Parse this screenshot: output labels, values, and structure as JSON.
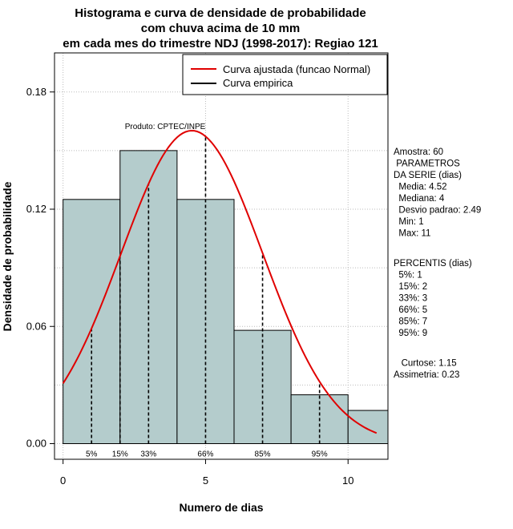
{
  "chart_data": {
    "type": "bar",
    "title_lines": [
      "Histograma e curva de densidade de probabilidade",
      "com chuva acima de 10 mm",
      "em cada mes do trimestre NDJ (1998-2017): Regiao 121"
    ],
    "xlabel": "Numero de dias",
    "ylabel": "Densidade de probabilidade",
    "xlim": [
      -0.3,
      11.4
    ],
    "ylim": [
      -0.008,
      0.2
    ],
    "x_ticks": [
      0,
      5,
      10
    ],
    "y_ticks": [
      0.0,
      0.06,
      0.12,
      0.18
    ],
    "y_tick_labels": [
      "0.00",
      "0.06",
      "0.12",
      "0.18"
    ],
    "grid": true,
    "bar_color": "#b4cccc",
    "bins": [
      {
        "x0": 0,
        "x1": 2,
        "density": 0.125
      },
      {
        "x0": 2,
        "x1": 4,
        "density": 0.15
      },
      {
        "x0": 4,
        "x1": 6,
        "density": 0.125
      },
      {
        "x0": 6,
        "x1": 8,
        "density": 0.058
      },
      {
        "x0": 8,
        "x1": 10,
        "density": 0.025
      },
      {
        "x0": 10,
        "x1": 11.4,
        "density": 0.017
      }
    ],
    "normal_fit": {
      "mean": 4.52,
      "sd": 2.49,
      "x_from": 0,
      "x_to": 11,
      "color": "#e00000"
    },
    "percentile_lines": [
      {
        "label": "5%",
        "x": 1
      },
      {
        "label": "15%",
        "x": 2
      },
      {
        "label": "33%",
        "x": 3
      },
      {
        "label": "66%",
        "x": 5
      },
      {
        "label": "85%",
        "x": 7
      },
      {
        "label": "95%",
        "x": 9
      }
    ],
    "legend": {
      "position": "top-right",
      "entries": [
        {
          "label": "Curva ajustada (funcao Normal)",
          "color": "#e00000"
        },
        {
          "label": "Curva empirica",
          "color": "#000000"
        }
      ]
    },
    "annotation": "Produto: CPTEC/INPE"
  },
  "stats_panel": [
    "Amostra: 60",
    " PARAMETROS",
    "DA SERIE (dias)",
    "  Media: 4.52",
    "  Mediana: 4",
    "  Desvio padrao: 2.49",
    "  Min: 1",
    "  Max: 11",
    "",
    "PERCENTIS (dias)",
    "  5%: 1",
    "  15%: 2",
    "  33%: 3",
    "  66%: 5",
    "  85%: 7",
    "  95%: 9",
    "",
    "   Curtose: 1.15",
    "Assimetria: 0.23"
  ]
}
